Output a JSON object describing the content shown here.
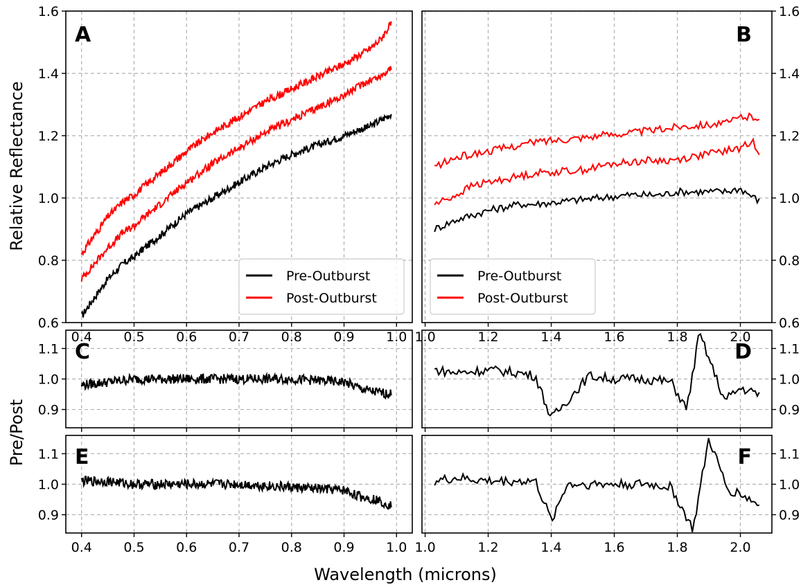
{
  "figure": {
    "xlabel": "Wavelength (microns)",
    "ylabel_top": "Relative Reflectance",
    "ylabel_bottom": "Pre/Post"
  },
  "colors": {
    "pre": "#000000",
    "post": "#ff0000",
    "grid": "#b0b0b0"
  },
  "legend": {
    "pre_label": "Pre-Outburst",
    "post_label": "Post-Outburst"
  },
  "chart_data": [
    {
      "panel": "A",
      "type": "line",
      "xlim": [
        0.37,
        1.03
      ],
      "ylim": [
        0.6,
        1.6
      ],
      "xticks": [
        0.4,
        0.5,
        0.6,
        0.7,
        0.8,
        0.9,
        1.0
      ],
      "xtick_labels": [
        "0.4",
        "0.5",
        "0.6",
        "0.7",
        "0.8",
        "0.9",
        "1.0"
      ],
      "yticks": [
        0.6,
        0.8,
        1.0,
        1.2,
        1.4,
        1.6
      ],
      "ytick_labels": [
        "0.6",
        "0.8",
        "1.0",
        "1.2",
        "1.4",
        "1.6"
      ],
      "grid": true,
      "legend_position": "lower-right",
      "series": [
        {
          "name": "Pre-Outburst",
          "x": [
            0.4,
            0.42,
            0.45,
            0.48,
            0.5,
            0.52,
            0.55,
            0.6,
            0.65,
            0.7,
            0.75,
            0.8,
            0.85,
            0.9,
            0.93,
            0.95,
            0.97,
            0.99
          ],
          "y": [
            0.62,
            0.67,
            0.74,
            0.79,
            0.81,
            0.84,
            0.88,
            0.95,
            1.0,
            1.05,
            1.1,
            1.14,
            1.17,
            1.2,
            1.22,
            1.23,
            1.25,
            1.27
          ]
        },
        {
          "name": "Post-Outburst (lower)",
          "x": [
            0.4,
            0.42,
            0.45,
            0.48,
            0.5,
            0.52,
            0.55,
            0.6,
            0.65,
            0.7,
            0.75,
            0.8,
            0.85,
            0.9,
            0.93,
            0.95,
            0.97,
            0.99
          ],
          "y": [
            0.74,
            0.78,
            0.84,
            0.89,
            0.91,
            0.94,
            0.98,
            1.05,
            1.11,
            1.16,
            1.21,
            1.25,
            1.29,
            1.33,
            1.36,
            1.38,
            1.39,
            1.42
          ]
        },
        {
          "name": "Post-Outburst (upper)",
          "x": [
            0.4,
            0.42,
            0.45,
            0.48,
            0.5,
            0.52,
            0.55,
            0.6,
            0.65,
            0.7,
            0.75,
            0.8,
            0.85,
            0.9,
            0.93,
            0.95,
            0.97,
            0.99
          ],
          "y": [
            0.82,
            0.87,
            0.94,
            0.99,
            1.01,
            1.04,
            1.08,
            1.15,
            1.21,
            1.26,
            1.31,
            1.35,
            1.39,
            1.43,
            1.46,
            1.48,
            1.51,
            1.56
          ]
        }
      ]
    },
    {
      "panel": "B",
      "type": "line",
      "xlim": [
        0.99,
        2.1
      ],
      "ylim": [
        0.6,
        1.6
      ],
      "xticks": [
        1.0,
        1.2,
        1.4,
        1.6,
        1.8,
        2.0
      ],
      "xtick_labels": [
        "1.0",
        "1.2",
        "1.4",
        "1.6",
        "1.8",
        "2.0"
      ],
      "yticks": [
        0.6,
        0.8,
        1.0,
        1.2,
        1.4,
        1.6
      ],
      "ytick_labels": [
        "0.6",
        "0.8",
        "1.0",
        "1.2",
        "1.4",
        "1.6"
      ],
      "yaxis_side": "right",
      "grid": true,
      "legend_position": "lower-left",
      "series": [
        {
          "name": "Pre-Outburst",
          "x": [
            1.03,
            1.1,
            1.2,
            1.3,
            1.35,
            1.45,
            1.55,
            1.65,
            1.75,
            1.8,
            1.95,
            2.0,
            2.06
          ],
          "y": [
            0.9,
            0.93,
            0.96,
            0.98,
            0.98,
            0.99,
            1.0,
            1.01,
            1.01,
            1.02,
            1.02,
            1.03,
            0.99
          ]
        },
        {
          "name": "Post-Outburst (lower)",
          "x": [
            1.03,
            1.1,
            1.15,
            1.2,
            1.3,
            1.35,
            1.5,
            1.6,
            1.7,
            1.78,
            2.0,
            2.04,
            2.06
          ],
          "y": [
            0.98,
            1.01,
            1.04,
            1.05,
            1.07,
            1.08,
            1.09,
            1.11,
            1.12,
            1.12,
            1.16,
            1.18,
            1.15
          ]
        },
        {
          "name": "Post-Outburst (upper)",
          "x": [
            1.03,
            1.1,
            1.2,
            1.3,
            1.35,
            1.45,
            1.55,
            1.65,
            1.75,
            1.8,
            1.96,
            2.0,
            2.06
          ],
          "y": [
            1.1,
            1.13,
            1.15,
            1.17,
            1.18,
            1.19,
            1.2,
            1.21,
            1.22,
            1.23,
            1.24,
            1.26,
            1.26
          ]
        }
      ]
    },
    {
      "panel": "C",
      "type": "line",
      "xlim": [
        0.37,
        1.03
      ],
      "ylim": [
        0.84,
        1.16
      ],
      "xticks": [
        0.4,
        0.5,
        0.6,
        0.7,
        0.8,
        0.9,
        1.0
      ],
      "yticks": [
        0.9,
        1.0,
        1.1
      ],
      "ytick_labels": [
        "0.9",
        "1.0",
        "1.1"
      ],
      "grid": true,
      "series": [
        {
          "name": "Pre/Post",
          "x": [
            0.4,
            0.5,
            0.6,
            0.7,
            0.8,
            0.9,
            0.93,
            0.95,
            0.99
          ],
          "y": [
            0.98,
            1.0,
            1.0,
            1.0,
            1.0,
            0.99,
            0.97,
            0.96,
            0.95
          ]
        }
      ]
    },
    {
      "panel": "D",
      "type": "line",
      "xlim": [
        0.99,
        2.1
      ],
      "ylim": [
        0.84,
        1.16
      ],
      "xticks": [
        1.0,
        1.2,
        1.4,
        1.6,
        1.8,
        2.0
      ],
      "yticks": [
        0.9,
        1.0,
        1.1
      ],
      "ytick_labels": [
        "0.9",
        "1.0",
        "1.1"
      ],
      "yaxis_side": "right",
      "grid": true,
      "series": [
        {
          "name": "Pre/Post",
          "x": [
            1.03,
            1.1,
            1.2,
            1.3,
            1.35,
            1.4,
            1.52,
            1.6,
            1.7,
            1.78,
            1.83,
            1.87,
            1.95,
            2.0,
            2.06
          ],
          "y": [
            1.03,
            1.02,
            1.03,
            1.02,
            1.01,
            0.87,
            1.01,
            1.0,
            1.0,
            0.99,
            0.9,
            1.15,
            0.93,
            0.97,
            0.95
          ]
        }
      ]
    },
    {
      "panel": "E",
      "type": "line",
      "xlim": [
        0.37,
        1.03
      ],
      "ylim": [
        0.84,
        1.16
      ],
      "xticks": [
        0.4,
        0.5,
        0.6,
        0.7,
        0.8,
        0.9,
        1.0
      ],
      "xtick_labels": [
        "0.4",
        "0.5",
        "0.6",
        "0.7",
        "0.8",
        "0.9",
        "1.0"
      ],
      "yticks": [
        0.9,
        1.0,
        1.1
      ],
      "ytick_labels": [
        "0.9",
        "1.0",
        "1.1"
      ],
      "grid": true,
      "series": [
        {
          "name": "Pre/Post",
          "x": [
            0.4,
            0.45,
            0.5,
            0.6,
            0.7,
            0.8,
            0.9,
            0.93,
            0.96,
            0.99
          ],
          "y": [
            1.01,
            1.01,
            1.0,
            1.0,
            1.0,
            0.99,
            0.98,
            0.96,
            0.95,
            0.93
          ]
        }
      ]
    },
    {
      "panel": "F",
      "type": "line",
      "xlim": [
        0.99,
        2.1
      ],
      "ylim": [
        0.84,
        1.16
      ],
      "xticks": [
        1.0,
        1.2,
        1.4,
        1.6,
        1.8,
        2.0
      ],
      "xtick_labels": [
        "1.0",
        "1.2",
        "1.4",
        "1.6",
        "1.8",
        "2.0"
      ],
      "yticks": [
        0.9,
        1.0,
        1.1
      ],
      "ytick_labels": [
        "0.9",
        "1.0",
        "1.1"
      ],
      "yaxis_side": "right",
      "grid": true,
      "series": [
        {
          "name": "Pre/Post",
          "x": [
            1.03,
            1.1,
            1.2,
            1.3,
            1.35,
            1.4,
            1.45,
            1.6,
            1.7,
            1.78,
            1.85,
            1.9,
            1.96,
            2.0,
            2.06
          ],
          "y": [
            1.01,
            1.02,
            1.01,
            1.01,
            1.01,
            0.88,
            1.0,
            1.0,
            1.0,
            0.99,
            0.85,
            1.15,
            0.98,
            0.97,
            0.93
          ]
        }
      ]
    }
  ]
}
